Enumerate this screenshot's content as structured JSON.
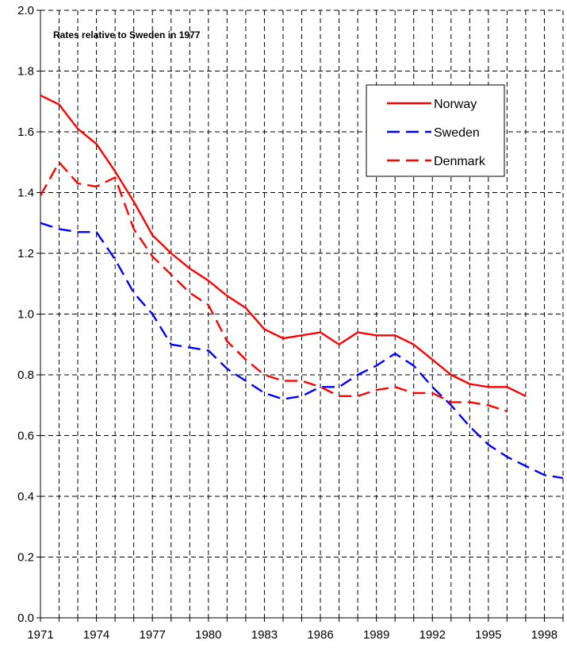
{
  "chart_data": {
    "type": "line",
    "title": "",
    "annotation": "Rates relative to Sweden in 1977",
    "xlabel": "",
    "ylabel": "",
    "xlim": [
      1971,
      1999
    ],
    "ylim": [
      0,
      2.0
    ],
    "x_ticks": [
      "1971",
      "1974",
      "1977",
      "1980",
      "1983",
      "1986",
      "1989",
      "1992",
      "1995",
      "1998"
    ],
    "y_ticks": [
      "0.0",
      "0.2",
      "0.4",
      "0.6",
      "0.8",
      "1.0",
      "1.2",
      "1.4",
      "1.6",
      "1.8",
      "2.0"
    ],
    "grid": true,
    "legend_position": "top-right",
    "series": [
      {
        "name": "Norway",
        "color": "#ff0000",
        "dash": "solid",
        "x": [
          1971,
          1972,
          1973,
          1974,
          1975,
          1976,
          1977,
          1978,
          1979,
          1980,
          1981,
          1982,
          1983,
          1984,
          1985,
          1986,
          1987,
          1988,
          1989,
          1990,
          1991,
          1992,
          1993,
          1994,
          1995,
          1996,
          1997
        ],
        "y": [
          1.72,
          1.69,
          1.61,
          1.56,
          1.47,
          1.37,
          1.26,
          1.2,
          1.15,
          1.11,
          1.06,
          1.02,
          0.95,
          0.92,
          0.93,
          0.94,
          0.9,
          0.94,
          0.93,
          0.93,
          0.9,
          0.85,
          0.8,
          0.77,
          0.76,
          0.76,
          0.73
        ]
      },
      {
        "name": "Sweden",
        "color": "#0000ff",
        "dash": "dashed",
        "x": [
          1971,
          1972,
          1973,
          1974,
          1975,
          1976,
          1977,
          1978,
          1979,
          1980,
          1981,
          1982,
          1983,
          1984,
          1985,
          1986,
          1987,
          1988,
          1989,
          1990,
          1991,
          1992,
          1993,
          1994,
          1995,
          1996,
          1997,
          1998,
          1999
        ],
        "y": [
          1.3,
          1.28,
          1.27,
          1.27,
          1.18,
          1.07,
          1.0,
          0.9,
          0.89,
          0.88,
          0.82,
          0.78,
          0.74,
          0.72,
          0.73,
          0.76,
          0.76,
          0.8,
          0.83,
          0.87,
          0.83,
          0.76,
          0.7,
          0.63,
          0.57,
          0.53,
          0.5,
          0.47,
          0.46
        ]
      },
      {
        "name": "Denmark",
        "color": "#ff0000",
        "dash": "dashed",
        "x": [
          1971,
          1972,
          1973,
          1974,
          1975,
          1976,
          1977,
          1978,
          1979,
          1980,
          1981,
          1982,
          1983,
          1984,
          1985,
          1986,
          1987,
          1988,
          1989,
          1990,
          1991,
          1992,
          1993,
          1994,
          1995,
          1996
        ],
        "y": [
          1.39,
          1.5,
          1.43,
          1.42,
          1.45,
          1.28,
          1.19,
          1.13,
          1.07,
          1.03,
          0.91,
          0.85,
          0.8,
          0.78,
          0.78,
          0.76,
          0.73,
          0.73,
          0.75,
          0.76,
          0.74,
          0.74,
          0.71,
          0.71,
          0.7,
          0.68
        ]
      }
    ]
  }
}
